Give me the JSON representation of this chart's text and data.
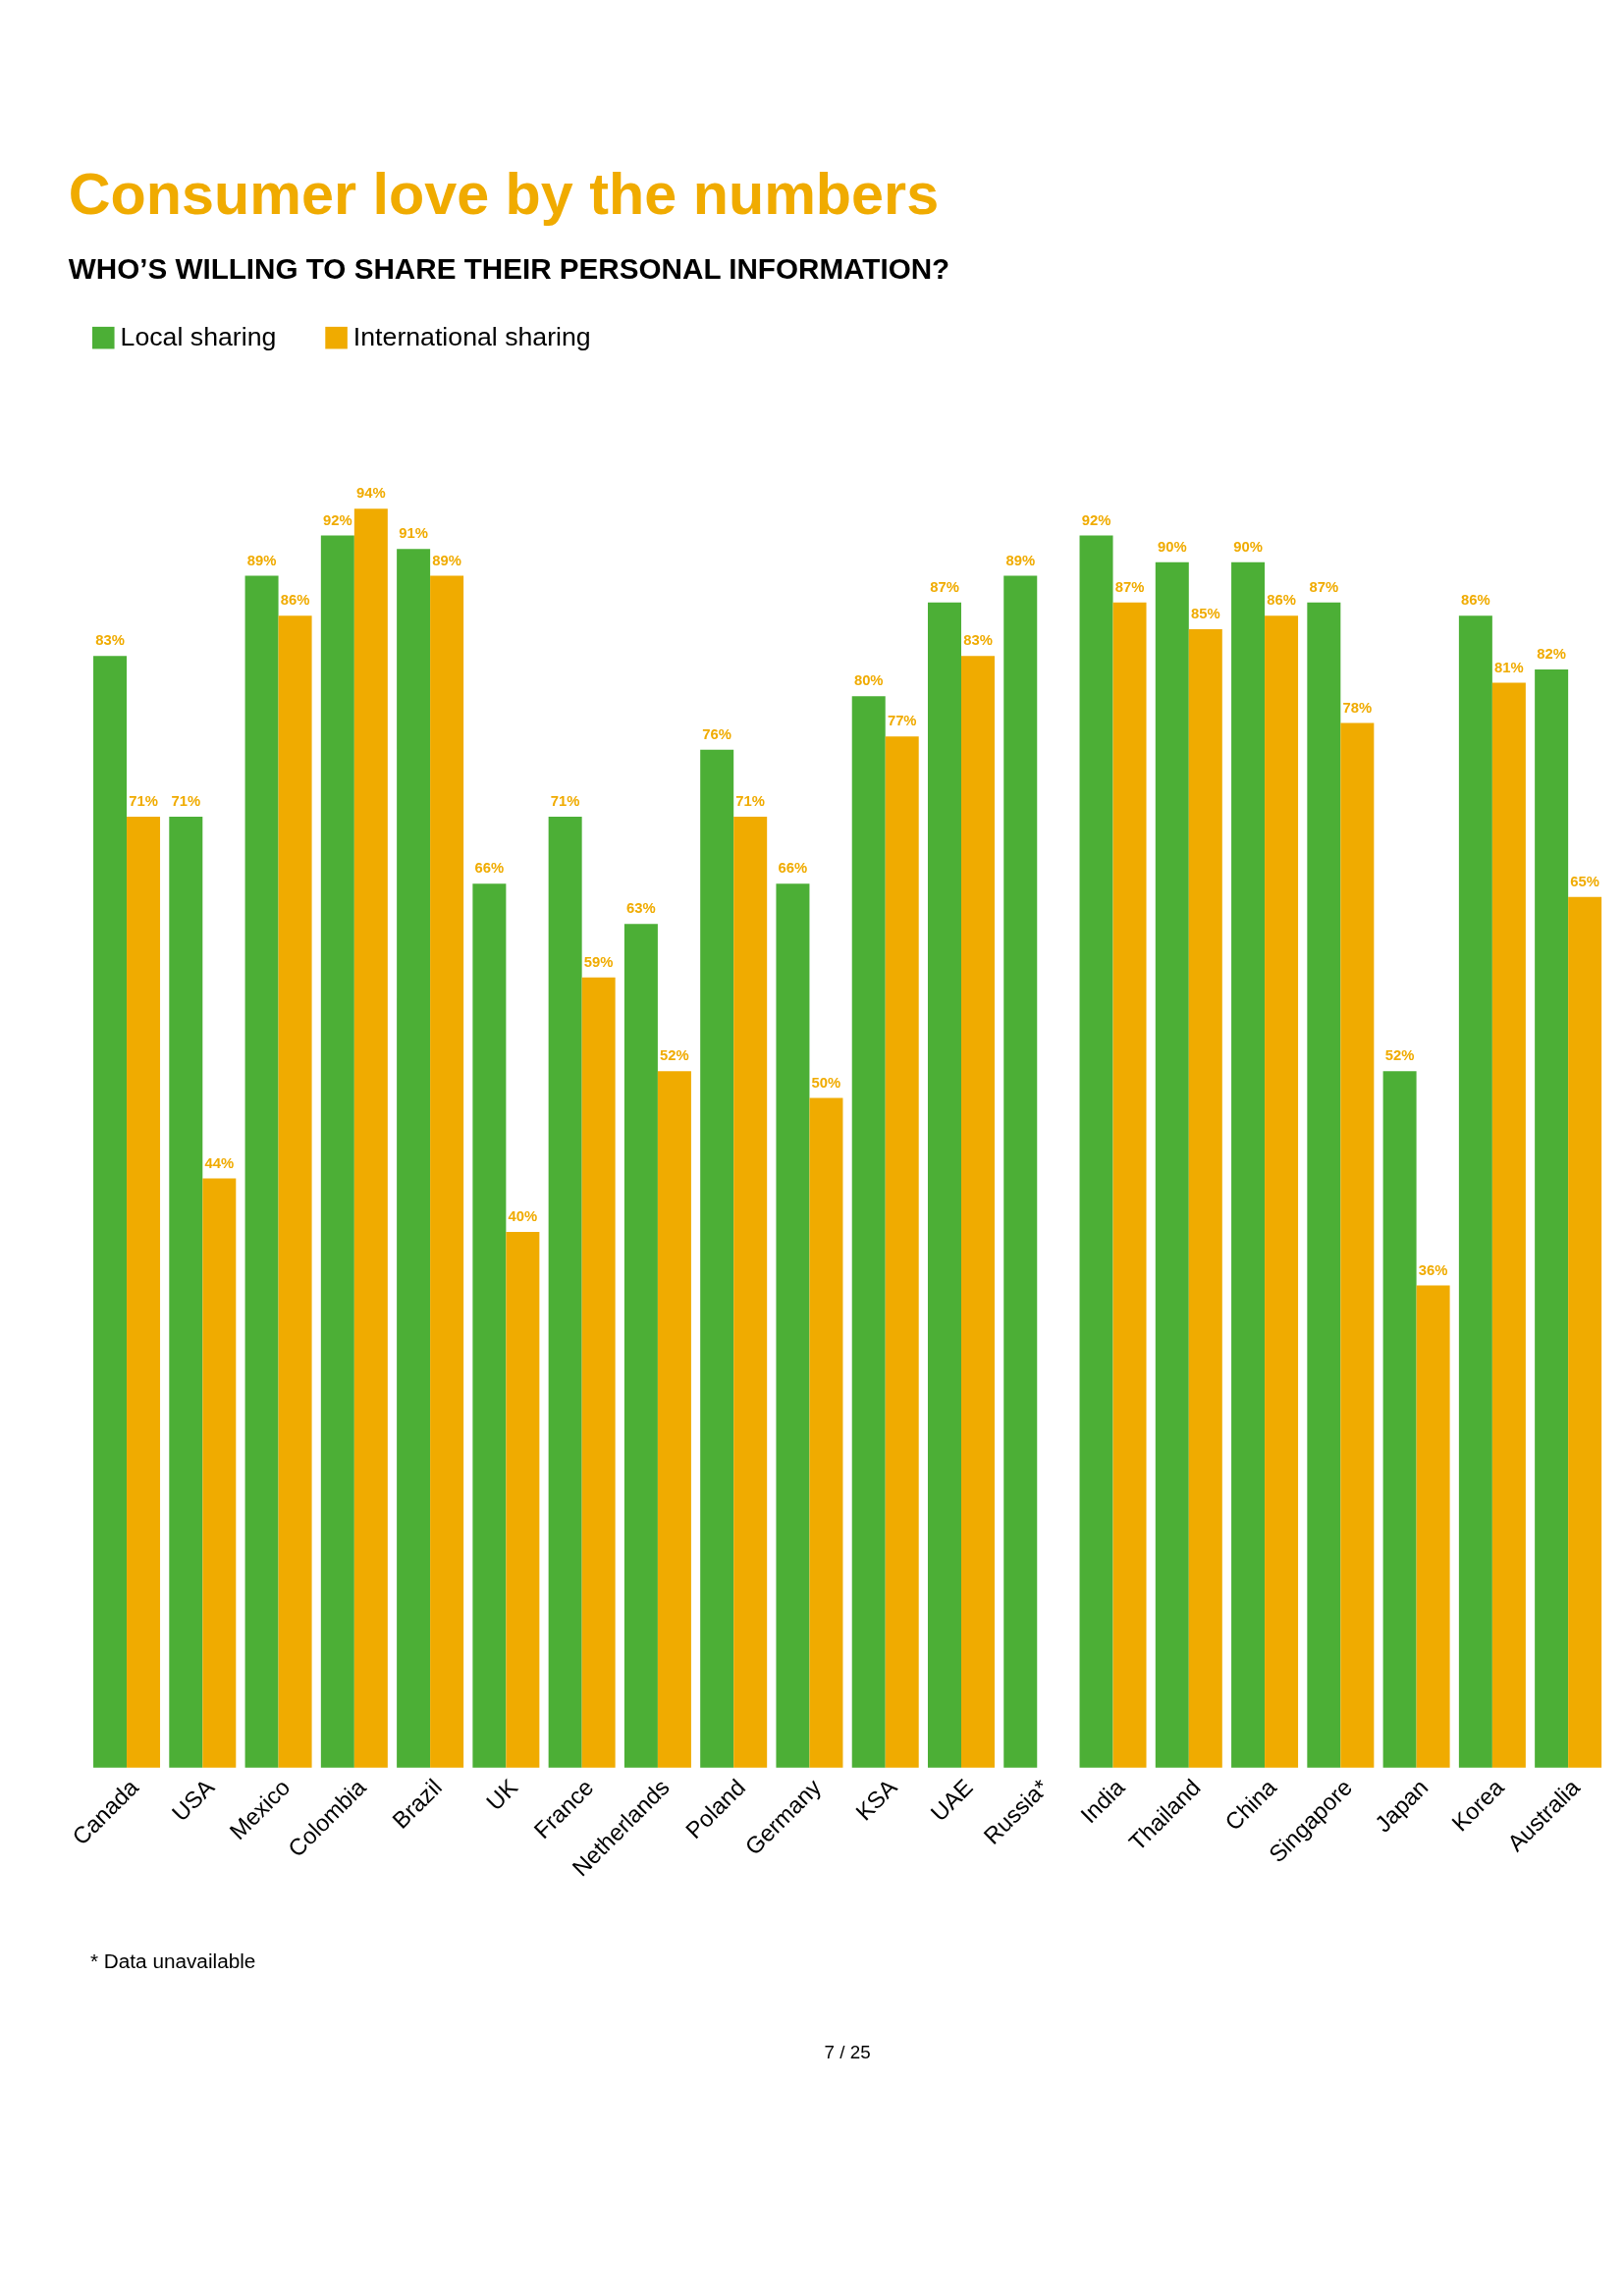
{
  "chart_data": {
    "type": "bar",
    "title": "Consumer love by the numbers",
    "subtitle": "WHO’S WILLING TO SHARE THEIR PERSONAL INFORMATION?",
    "categories": [
      "Canada",
      "USA",
      "Mexico",
      "Colombia",
      "Brazil",
      "UK",
      "France",
      "Netherlands",
      "Poland",
      "Germany",
      "KSA",
      "UAE",
      "Russia*",
      "India",
      "Thailand",
      "China",
      "Singapore",
      "Japan",
      "Korea",
      "Australia"
    ],
    "series": [
      {
        "name": "Local sharing",
        "color": "#4caf36",
        "values": [
          83,
          71,
          89,
          92,
          91,
          66,
          71,
          63,
          76,
          66,
          80,
          87,
          89,
          92,
          90,
          90,
          87,
          52,
          86,
          82
        ],
        "value_labels": [
          "83%",
          "71%",
          "89%",
          "92%",
          "91%",
          "66%",
          "71%",
          "63%",
          "76%",
          "66%",
          "80%",
          "87%",
          "89%",
          "92%",
          "90%",
          "90%",
          "87%",
          "52%",
          "86%",
          "82%"
        ]
      },
      {
        "name": "International sharing",
        "color": "#f0ab00",
        "values": [
          71,
          44,
          86,
          94,
          89,
          40,
          59,
          52,
          71,
          50,
          77,
          83,
          null,
          87,
          85,
          86,
          78,
          36,
          81,
          65
        ],
        "value_labels": [
          "71%",
          "44%",
          "86%",
          "94%",
          "89%",
          "40%",
          "59%",
          "52%",
          "71%",
          "50%",
          "77%",
          "83%",
          null,
          "87%",
          "85%",
          "86%",
          "78%",
          "36%",
          "81%",
          "65%"
        ]
      }
    ],
    "legend": "top left",
    "tick_labels": "x",
    "annotations": [
      "* Data unavailable",
      "7 / 25"
    ]
  }
}
